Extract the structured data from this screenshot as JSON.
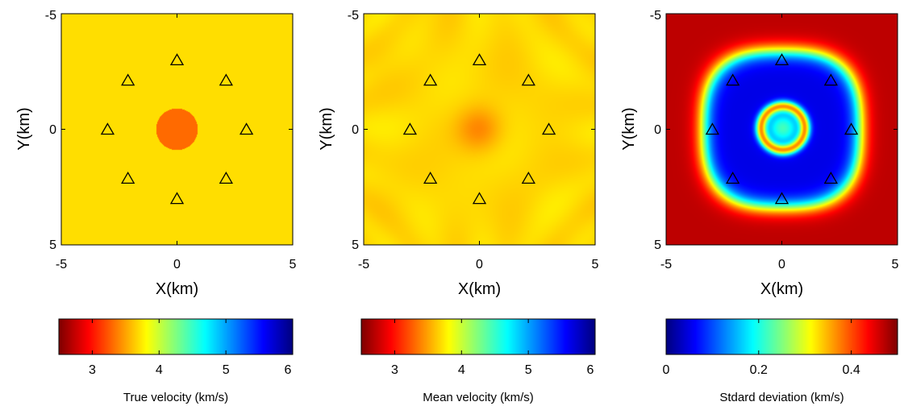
{
  "chart_data": [
    {
      "type": "heatmap",
      "xlabel": "X(km)",
      "ylabel": "Y(km)",
      "xlim": [
        -5,
        5
      ],
      "ylim": [
        -5,
        5
      ],
      "y_reversed": true,
      "x_ticks": [
        "-5",
        "0",
        "5"
      ],
      "y_ticks": [
        "-5",
        "0",
        "5"
      ],
      "colormap": "jet_reversed",
      "colorbar": {
        "label": "True velocity (km/s)",
        "range": [
          2.5,
          6
        ],
        "ticks": [
          "3",
          "4",
          "5",
          "6"
        ],
        "tick_values": [
          3,
          4,
          5,
          6
        ]
      },
      "field": {
        "background": 3.7,
        "anomaly_center": [
          0,
          0
        ],
        "anomaly_radius_km": 0.9,
        "anomaly_value": 3.3
      },
      "stations": [
        [
          0,
          -3
        ],
        [
          2.12,
          -2.12
        ],
        [
          3,
          0
        ],
        [
          2.12,
          2.12
        ],
        [
          0,
          3
        ],
        [
          -2.12,
          2.12
        ],
        [
          -3,
          0
        ],
        [
          -2.12,
          -2.12
        ]
      ]
    },
    {
      "type": "heatmap",
      "xlabel": "X(km)",
      "ylabel": "Y(km)",
      "xlim": [
        -5,
        5
      ],
      "ylim": [
        -5,
        5
      ],
      "y_reversed": true,
      "x_ticks": [
        "-5",
        "0",
        "5"
      ],
      "y_ticks": [
        "-5",
        "0",
        "5"
      ],
      "colormap": "jet_reversed",
      "colorbar": {
        "label": "Mean velocity (km/s)",
        "range": [
          2.5,
          6
        ],
        "ticks": [
          "3",
          "4",
          "5",
          "6"
        ],
        "tick_values": [
          3,
          4,
          5,
          6
        ]
      },
      "field": {
        "background": 3.68,
        "anomaly_center": [
          0,
          0
        ],
        "anomaly_radius_km": 1.2,
        "anomaly_value": 3.35
      },
      "stations": [
        [
          0,
          -3
        ],
        [
          2.12,
          -2.12
        ],
        [
          3,
          0
        ],
        [
          2.12,
          2.12
        ],
        [
          0,
          3
        ],
        [
          -2.12,
          2.12
        ],
        [
          -3,
          0
        ],
        [
          -2.12,
          -2.12
        ]
      ]
    },
    {
      "type": "heatmap",
      "xlabel": "X(km)",
      "ylabel": "Y(km)",
      "xlim": [
        -5,
        5
      ],
      "ylim": [
        -5,
        5
      ],
      "y_reversed": true,
      "x_ticks": [
        "-5",
        "0",
        "5"
      ],
      "y_ticks": [
        "-5",
        "0",
        "5"
      ],
      "colormap": "jet",
      "colorbar": {
        "label": "Stdard deviation (km/s)",
        "range": [
          0,
          0.5
        ],
        "ticks": [
          "0",
          "0.2",
          "0.4"
        ],
        "tick_values": [
          0,
          0.2,
          0.4
        ]
      },
      "field": {
        "outside": 0.47,
        "ring": 0.05,
        "center": 0.22,
        "peak_ring": 0.33
      },
      "stations": [
        [
          0,
          -3
        ],
        [
          2.12,
          -2.12
        ],
        [
          3,
          0
        ],
        [
          2.12,
          2.12
        ],
        [
          0,
          3
        ],
        [
          -2.12,
          2.12
        ],
        [
          -3,
          0
        ],
        [
          -2.12,
          -2.12
        ]
      ]
    }
  ]
}
